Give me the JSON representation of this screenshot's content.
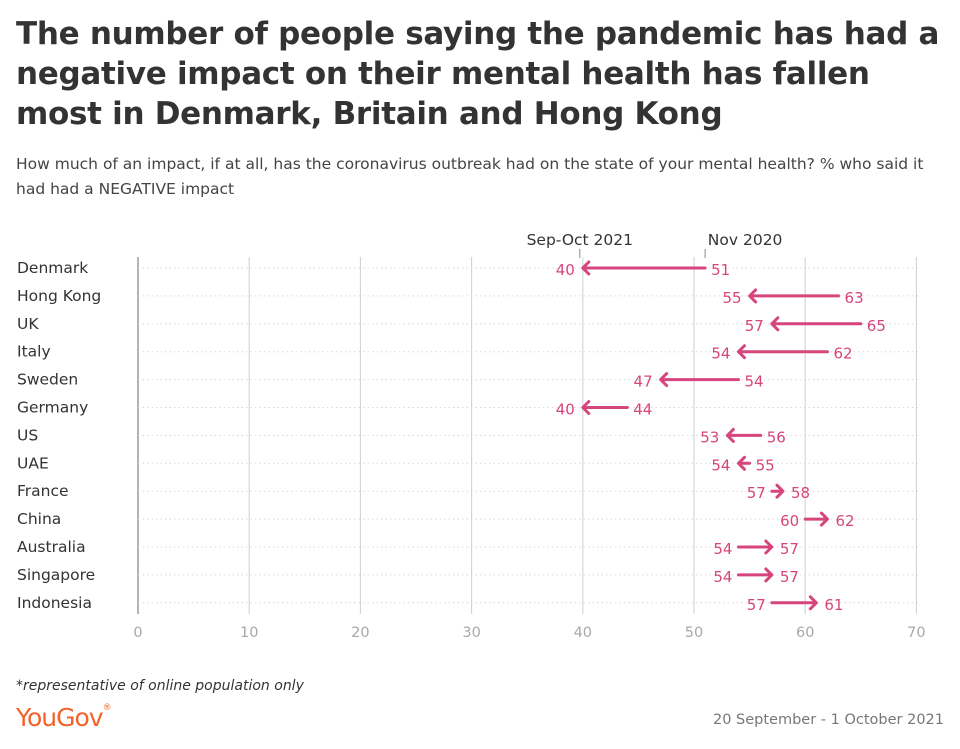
{
  "title": "The number of people saying the pandemic has had a negative impact on their mental health has fallen most in Denmark, Britain and Hong Kong",
  "subtitle": "How much of an impact, if at all, has the coronavirus outbreak had on the state of your mental health? % who said it had had a NEGATIVE impact",
  "footnote": "*representative of online population only",
  "logo_text": "YouGov",
  "date_range": "20 September - 1 October 2021",
  "colors": {
    "accent": "#d6457c",
    "grid": "#cfcfcf",
    "axis_text": "#a8a8a8",
    "text": "#333333",
    "brand": "#f0632b"
  },
  "chart_data": {
    "type": "dumbbell-arrow",
    "title": "The number of people saying the pandemic has had a negative impact on their mental health has fallen most in Denmark, Britain and Hong Kong",
    "subtitle": "How much of an impact, if at all, has the coronavirus outbreak had on the state of your mental health? % who said it had had a NEGATIVE impact",
    "xlim": [
      0,
      70
    ],
    "x_ticks": [
      0,
      10,
      20,
      30,
      40,
      50,
      60,
      70
    ],
    "grid": true,
    "series_names": {
      "from": "Nov 2020",
      "to": "Sep-Oct 2021"
    },
    "categories": [
      "Denmark",
      "Hong Kong",
      "UK",
      "Italy",
      "Sweden",
      "Germany",
      "US",
      "UAE",
      "France",
      "China",
      "Australia",
      "Singapore",
      "Indonesia"
    ],
    "series": [
      {
        "name": "Nov 2020",
        "values": [
          51,
          63,
          65,
          62,
          54,
          44,
          56,
          55,
          57,
          60,
          54,
          54,
          57
        ]
      },
      {
        "name": "Sep-Oct 2021",
        "values": [
          40,
          55,
          57,
          54,
          47,
          40,
          53,
          54,
          58,
          62,
          57,
          57,
          61
        ]
      }
    ]
  }
}
